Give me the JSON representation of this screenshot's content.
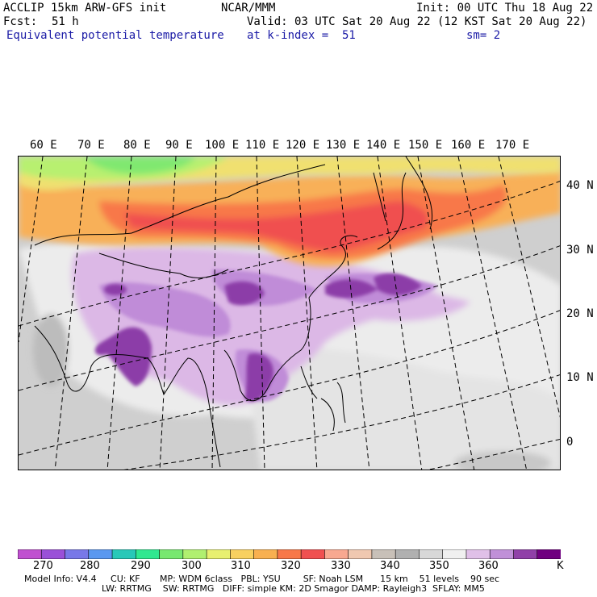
{
  "header": {
    "model": "ACCLIP 15km ARW-GFS init",
    "org": "NCAR/MMM",
    "init": "Init: 00 UTC Thu 18 Aug 22",
    "fcst_label": "Fcst:",
    "fcst_value": "51 h",
    "valid": "Valid: 03 UTC Sat 20 Aug 22 (12 KST Sat 20 Aug 22)",
    "field": "Equivalent potential temperature",
    "level": "at k-index =  51",
    "smooth": "sm= 2"
  },
  "map": {
    "lon_labels": [
      "60 E",
      "70 E",
      "80 E",
      "90 E",
      "100 E",
      "110 E",
      "120 E",
      "130 E",
      "140 E",
      "150 E",
      "160 E",
      "170 E"
    ],
    "lat_labels": [
      "40 N",
      "30 N",
      "20 N",
      "10 N",
      "0"
    ]
  },
  "colorbar": {
    "colors": [
      "#c050d0",
      "#9a50d8",
      "#7878e8",
      "#5a98f0",
      "#28c8b8",
      "#30e890",
      "#78e870",
      "#b0f070",
      "#e8f070",
      "#f8d060",
      "#f8b050",
      "#f87848",
      "#f05050",
      "#f8a890",
      "#f0c8b0",
      "#c8c0b8",
      "#b0b0b0",
      "#d8d8d8",
      "#f0f0f0",
      "#e0c0e8",
      "#c090d8",
      "#9040a8",
      "#700080"
    ],
    "ticks": [
      "270",
      "280",
      "290",
      "300",
      "310",
      "320",
      "330",
      "340",
      "350",
      "360",
      "K"
    ]
  },
  "footer": {
    "line1": "Model Info: V4.4     CU: KF       MP: WDM 6class   PBL: YSU        SF: Noah LSM      15 km    51 levels    90 sec",
    "line2": "LW: RRTMG    SW: RRTMG   DIFF: simple KM: 2D Smagor DAMP: Rayleigh3  SFLAY: MM5"
  }
}
